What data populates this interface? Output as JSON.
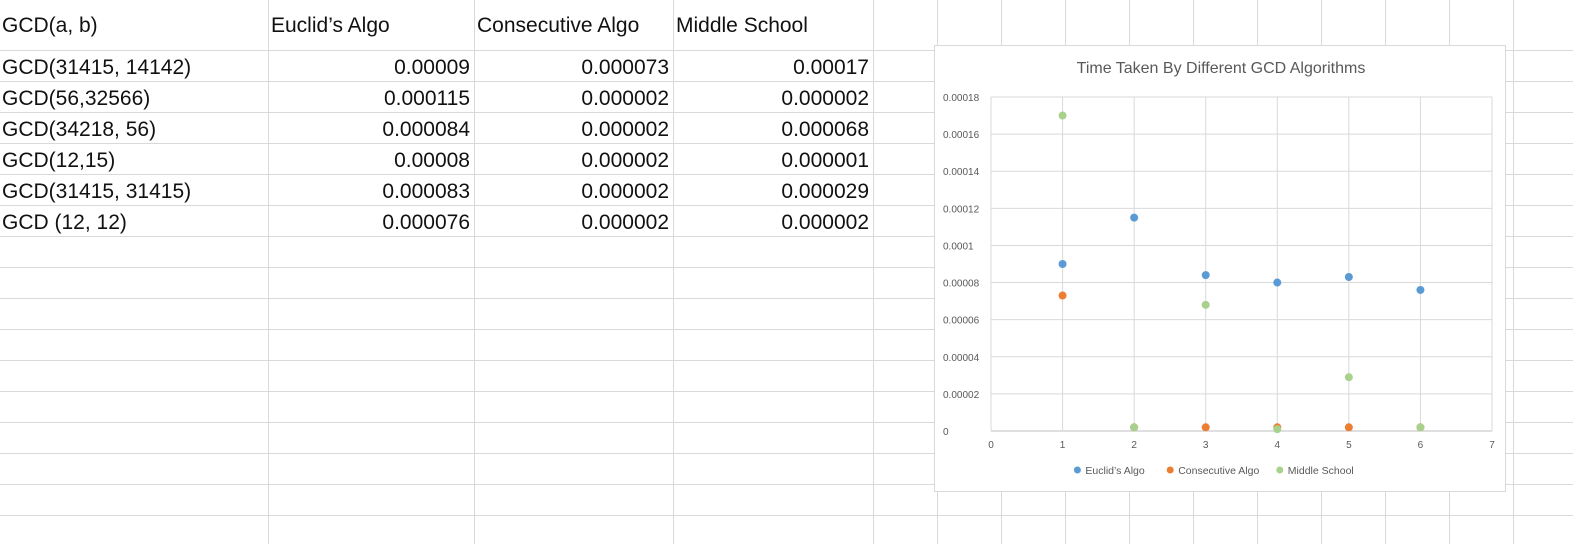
{
  "sheet": {
    "headers": [
      "GCD(a, b)",
      "Euclid’s Algo",
      "Consecutive Algo",
      "Middle School"
    ],
    "rows": [
      [
        "GCD(31415, 14142)",
        "0.00009",
        "0.000073",
        "0.00017"
      ],
      [
        "GCD(56,32566)",
        "0.000115",
        "0.000002",
        "0.000002"
      ],
      [
        "GCD(34218, 56)",
        "0.000084",
        "0.000002",
        "0.000068"
      ],
      [
        "GCD(12,15)",
        "0.00008",
        "0.000002",
        "0.000001"
      ],
      [
        "GCD(31415, 31415)",
        "0.000083",
        "0.000002",
        "0.000029"
      ],
      [
        "GCD (12, 12)",
        "0.000076",
        "0.000002",
        "0.000002"
      ]
    ]
  },
  "chart_data": {
    "type": "scatter",
    "title": "Time Taken By Different GCD Algorithms",
    "xlabel": "",
    "ylabel": "",
    "xlim": [
      0,
      7
    ],
    "ylim": [
      0,
      0.00018
    ],
    "x_ticks": [
      "0",
      "1",
      "2",
      "3",
      "4",
      "5",
      "6",
      "7"
    ],
    "y_ticks": [
      "0",
      "0.00002",
      "0.00004",
      "0.00006",
      "0.00008",
      "0.0001",
      "0.00012",
      "0.00014",
      "0.00016",
      "0.00018"
    ],
    "grid": true,
    "legend_position": "bottom",
    "x": [
      1,
      2,
      3,
      4,
      5,
      6
    ],
    "series": [
      {
        "name": "Euclid’s Algo",
        "color": "#5b9bd5",
        "values": [
          9e-05,
          0.000115,
          8.4e-05,
          8e-05,
          8.3e-05,
          7.6e-05
        ]
      },
      {
        "name": "Consecutive Algo",
        "color": "#ed7d31",
        "values": [
          7.3e-05,
          2e-06,
          2e-06,
          2e-06,
          2e-06,
          2e-06
        ]
      },
      {
        "name": "Middle School",
        "color": "#a9d18e",
        "values": [
          0.00017,
          2e-06,
          6.8e-05,
          1e-06,
          2.9e-05,
          2e-06
        ]
      }
    ]
  }
}
